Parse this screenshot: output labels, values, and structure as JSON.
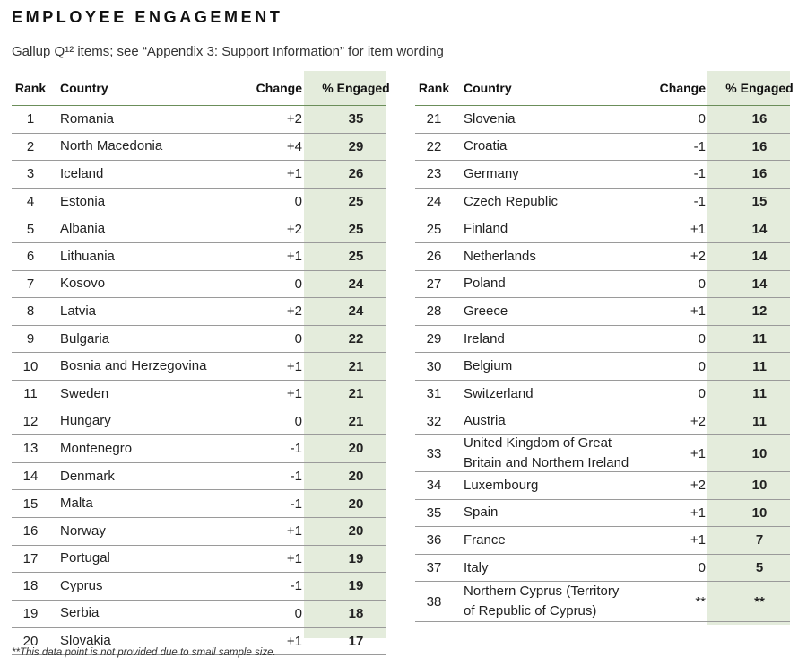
{
  "title": "EMPLOYEE ENGAGEMENT",
  "subtitle": "Gallup Q¹² items; see “Appendix 3: Support Information” for item wording",
  "headers": {
    "rank": "Rank",
    "country": "Country",
    "change": "Change",
    "engaged": "% Engaged"
  },
  "left_rows": [
    {
      "rank": "1",
      "country": "Romania",
      "change": "+2",
      "engaged": "35"
    },
    {
      "rank": "2",
      "country": "North Macedonia",
      "change": "+4",
      "engaged": "29"
    },
    {
      "rank": "3",
      "country": "Iceland",
      "change": "+1",
      "engaged": "26"
    },
    {
      "rank": "4",
      "country": "Estonia",
      "change": "0",
      "engaged": "25"
    },
    {
      "rank": "5",
      "country": "Albania",
      "change": "+2",
      "engaged": "25"
    },
    {
      "rank": "6",
      "country": "Lithuania",
      "change": "+1",
      "engaged": "25"
    },
    {
      "rank": "7",
      "country": "Kosovo",
      "change": "0",
      "engaged": "24"
    },
    {
      "rank": "8",
      "country": "Latvia",
      "change": "+2",
      "engaged": "24"
    },
    {
      "rank": "9",
      "country": "Bulgaria",
      "change": "0",
      "engaged": "22"
    },
    {
      "rank": "10",
      "country": "Bosnia and Herzegovina",
      "change": "+1",
      "engaged": "21"
    },
    {
      "rank": "11",
      "country": "Sweden",
      "change": "+1",
      "engaged": "21"
    },
    {
      "rank": "12",
      "country": "Hungary",
      "change": "0",
      "engaged": "21"
    },
    {
      "rank": "13",
      "country": "Montenegro",
      "change": "-1",
      "engaged": "20"
    },
    {
      "rank": "14",
      "country": "Denmark",
      "change": "-1",
      "engaged": "20"
    },
    {
      "rank": "15",
      "country": "Malta",
      "change": "-1",
      "engaged": "20"
    },
    {
      "rank": "16",
      "country": "Norway",
      "change": "+1",
      "engaged": "20"
    },
    {
      "rank": "17",
      "country": "Portugal",
      "change": "+1",
      "engaged": "19"
    },
    {
      "rank": "18",
      "country": "Cyprus",
      "change": "-1",
      "engaged": "19"
    },
    {
      "rank": "19",
      "country": "Serbia",
      "change": "0",
      "engaged": "18"
    },
    {
      "rank": "20",
      "country": "Slovakia",
      "change": "+1",
      "engaged": "17"
    }
  ],
  "right_rows": [
    {
      "rank": "21",
      "country": "Slovenia",
      "change": "0",
      "engaged": "16"
    },
    {
      "rank": "22",
      "country": "Croatia",
      "change": "-1",
      "engaged": "16"
    },
    {
      "rank": "23",
      "country": "Germany",
      "change": "-1",
      "engaged": "16"
    },
    {
      "rank": "24",
      "country": "Czech Republic",
      "change": "-1",
      "engaged": "15"
    },
    {
      "rank": "25",
      "country": "Finland",
      "change": "+1",
      "engaged": "14"
    },
    {
      "rank": "26",
      "country": "Netherlands",
      "change": "+2",
      "engaged": "14"
    },
    {
      "rank": "27",
      "country": "Poland",
      "change": "0",
      "engaged": "14"
    },
    {
      "rank": "28",
      "country": "Greece",
      "change": "+1",
      "engaged": "12"
    },
    {
      "rank": "29",
      "country": "Ireland",
      "change": "0",
      "engaged": "11"
    },
    {
      "rank": "30",
      "country": "Belgium",
      "change": "0",
      "engaged": "11"
    },
    {
      "rank": "31",
      "country": "Switzerland",
      "change": "0",
      "engaged": "11"
    },
    {
      "rank": "32",
      "country": "Austria",
      "change": "+2",
      "engaged": "11"
    },
    {
      "rank": "33",
      "country": "United Kingdom of Great Britain and Northern Ireland",
      "change": "+1",
      "engaged": "10"
    },
    {
      "rank": "34",
      "country": "Luxembourg",
      "change": "+2",
      "engaged": "10"
    },
    {
      "rank": "35",
      "country": "Spain",
      "change": "+1",
      "engaged": "10"
    },
    {
      "rank": "36",
      "country": "France",
      "change": "+1",
      "engaged": "7"
    },
    {
      "rank": "37",
      "country": "Italy",
      "change": "0",
      "engaged": "5"
    },
    {
      "rank": "38",
      "country": "Northern Cyprus (Territory of Republic of Cyprus)",
      "change": "**",
      "engaged": "**"
    }
  ],
  "footnote": "**This data point is not provided due to small sample size.",
  "colors": {
    "engaged_shade": "#e4ecdc",
    "header_rule": "#6b8e5a"
  }
}
